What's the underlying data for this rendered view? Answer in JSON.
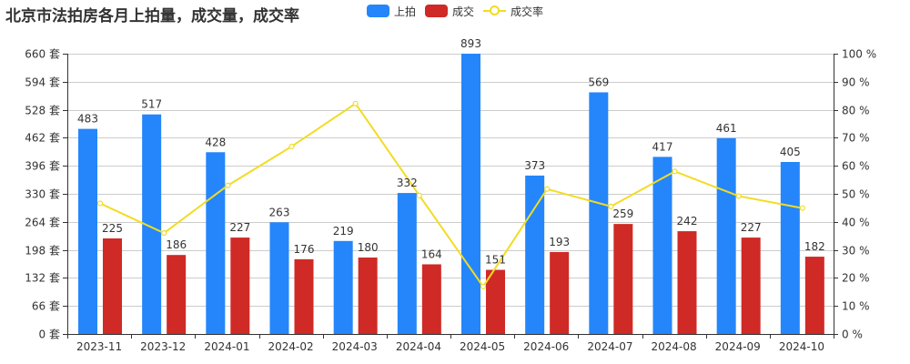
{
  "title": "北京市法拍房各月上拍量，成交量，成交率",
  "legend": [
    {
      "label": "上拍",
      "type": "bar",
      "color": "#2486fa"
    },
    {
      "label": "成交",
      "type": "bar",
      "color": "#cf2a26"
    },
    {
      "label": "成交率",
      "type": "line",
      "color": "#f2dc23"
    }
  ],
  "chart_data": {
    "type": "bar",
    "title": "北京市法拍房各月上拍量，成交量，成交率",
    "categories": [
      "2023-11",
      "2023-12",
      "2024-01",
      "2024-02",
      "2024-03",
      "2024-04",
      "2024-05",
      "2024-06",
      "2024-07",
      "2024-08",
      "2024-09",
      "2024-10"
    ],
    "series": [
      {
        "name": "上拍",
        "type": "bar",
        "axis": "left",
        "color": "#2486fa",
        "values": [
          483,
          517,
          428,
          263,
          219,
          332,
          893,
          373,
          569,
          417,
          461,
          405
        ]
      },
      {
        "name": "成交",
        "type": "bar",
        "axis": "left",
        "color": "#cf2a26",
        "values": [
          225,
          186,
          227,
          176,
          180,
          164,
          151,
          193,
          259,
          242,
          227,
          182
        ]
      },
      {
        "name": "成交率",
        "type": "line",
        "axis": "right",
        "color": "#f2dc23",
        "values": [
          46.6,
          36.0,
          53.0,
          66.9,
          82.2,
          49.4,
          16.9,
          51.7,
          45.5,
          58.0,
          49.2,
          44.9
        ]
      }
    ],
    "left_axis": {
      "label_suffix": " 套",
      "ylim": [
        0,
        660
      ],
      "ticks": [
        0,
        66,
        132,
        198,
        264,
        330,
        396,
        462,
        528,
        594,
        660
      ]
    },
    "right_axis": {
      "label_suffix": " %",
      "ylim": [
        0,
        100
      ],
      "ticks": [
        0,
        10,
        20,
        30,
        40,
        50,
        60,
        70,
        80,
        90,
        100
      ]
    },
    "xlabel": "",
    "ylabel": "",
    "grid": true,
    "legend_position": "top"
  }
}
